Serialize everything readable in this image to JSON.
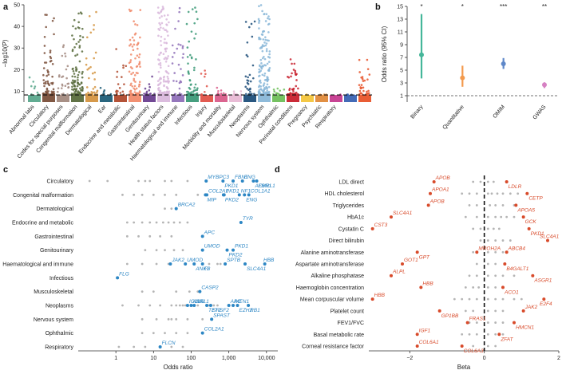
{
  "panel_labels": [
    "a",
    "b",
    "c",
    "d"
  ],
  "colors": {
    "grey": "#b5b5b5",
    "blue": "#2c86c4",
    "red": "#d84a2a",
    "binary": "#45b69a",
    "quantitative": "#f39a4d",
    "omim": "#5f88c9",
    "gwas": "#d681c3"
  },
  "chart_data": [
    {
      "id": "a",
      "type": "scatter",
      "title": "",
      "ylabel": "−log10(P)",
      "ylim": [
        5,
        50
      ],
      "yticks": [
        10,
        20,
        30,
        40,
        50
      ],
      "threshold": 8.3,
      "categories": [
        {
          "name": "Abnormal labs",
          "color": "#5aa88c",
          "n": 8,
          "max": 32
        },
        {
          "name": "Circulatory",
          "color": "#7a4f3a",
          "n": 70,
          "max": 50
        },
        {
          "name": "Codes for special purposes",
          "color": "#a38a80",
          "n": 25,
          "max": 33
        },
        {
          "name": "Congenital malformation",
          "color": "#586b3c",
          "n": 110,
          "max": 50
        },
        {
          "name": "Dermatological",
          "color": "#d49440",
          "n": 35,
          "max": 50
        },
        {
          "name": "Ear",
          "color": "#1f5e78",
          "n": 6,
          "max": 12
        },
        {
          "name": "Endocrine and metabolic",
          "color": "#b04a2d",
          "n": 18,
          "max": 30
        },
        {
          "name": "Gastrointestinal",
          "color": "#f08a6a",
          "n": 85,
          "max": 50
        },
        {
          "name": "Genitourinary",
          "color": "#6a3f8f",
          "n": 14,
          "max": 18
        },
        {
          "name": "Health status factors",
          "color": "#d9b8dc",
          "n": 140,
          "max": 50
        },
        {
          "name": "Haematological and immune",
          "color": "#8f70b8",
          "n": 30,
          "max": 50
        },
        {
          "name": "Infectious",
          "color": "#3c9a78",
          "n": 60,
          "max": 50
        },
        {
          "name": "Injury",
          "color": "#e05248",
          "n": 8,
          "max": 20
        },
        {
          "name": "Morbidity and mortality",
          "color": "#d95d8a",
          "n": 10,
          "max": 14
        },
        {
          "name": "Musculoskeletal",
          "color": "#e8b8d4",
          "n": 8,
          "max": 11
        },
        {
          "name": "Neoplasms",
          "color": "#1f4f7a",
          "n": 30,
          "max": 43
        },
        {
          "name": "Nervous system",
          "color": "#89b7d8",
          "n": 160,
          "max": 50
        },
        {
          "name": "Ophthalmic",
          "color": "#6fbf5a",
          "n": 10,
          "max": 15
        },
        {
          "name": "Perinatal conditions",
          "color": "#c8202d",
          "n": 45,
          "max": 25
        },
        {
          "name": "Pregnancy",
          "color": "#f3c53c",
          "n": 3,
          "max": 7
        },
        {
          "name": "Psychiatric",
          "color": "#e08a3a",
          "n": 4,
          "max": 7
        },
        {
          "name": "Respiratory",
          "color": "#c53b8f",
          "n": 3,
          "max": 6
        },
        {
          "name": "",
          "color": "#3a63b3",
          "n": 5,
          "max": 8
        },
        {
          "name": "",
          "color": "#e8542a",
          "n": 30,
          "max": 25
        }
      ]
    },
    {
      "id": "b",
      "type": "scatter",
      "title": "",
      "ylabel": "Odds ratio (95% CI)",
      "ylim": [
        0,
        15
      ],
      "yticks": [
        1,
        3,
        5,
        7,
        9,
        11,
        13,
        15
      ],
      "reference_line": 1,
      "categories": [
        "Binary",
        "Quantitative",
        "OMIM",
        "GWAS"
      ],
      "series": [
        {
          "category": "Binary",
          "or": 7.4,
          "ci": [
            3.7,
            13.8
          ],
          "significance": "*",
          "color": "#45b69a"
        },
        {
          "category": "Quantitative",
          "or": 3.8,
          "ci": [
            2.4,
            5.7
          ],
          "significance": "*",
          "color": "#f39a4d"
        },
        {
          "category": "OMIM",
          "or": 6.0,
          "ci": [
            5.2,
            6.9
          ],
          "significance": "***",
          "color": "#5f88c9"
        },
        {
          "category": "GWAS",
          "or": 2.7,
          "ci": [
            2.2,
            3.1
          ],
          "significance": "**",
          "color": "#d681c3"
        }
      ]
    },
    {
      "id": "c",
      "type": "scatter",
      "title": "",
      "xlabel": "Odds ratio",
      "xscale": "log",
      "xlim": [
        0.1,
        20000
      ],
      "xticks": [
        1,
        10,
        100,
        1000,
        10000
      ],
      "xtick_labels": [
        "1",
        "10",
        "100",
        "1,000",
        "10,000"
      ],
      "categories": [
        "Circulatory",
        "Congenital malformation",
        "Dermatological",
        "Endocrine and metabolic",
        "Gastrointestinal",
        "Genitourinary",
        "Haematological and immune",
        "Infectious",
        "Musculoskeletal",
        "Neoplasms",
        "Nervous system",
        "Ophthalmic",
        "Respiratory"
      ],
      "background": [
        {
          "category": "Circulatory",
          "x": [
            0.2,
            0.6,
            4,
            6,
            8,
            20,
            30,
            80
          ]
        },
        {
          "category": "Congenital malformation",
          "x": [
            1.5,
            3,
            5,
            10,
            20,
            40,
            150
          ]
        },
        {
          "category": "Dermatological",
          "x": [
            20,
            30
          ]
        },
        {
          "category": "Endocrine and metabolic",
          "x": [
            2,
            3,
            5,
            8,
            12,
            18,
            25,
            35,
            50,
            80
          ]
        },
        {
          "category": "Gastrointestinal",
          "x": [
            2,
            4,
            8,
            15,
            30
          ]
        },
        {
          "category": "Genitourinary",
          "x": [
            6,
            12,
            20,
            35,
            60
          ]
        },
        {
          "category": "Haematological and immune",
          "x": [
            2,
            5,
            12,
            25,
            300,
            500,
            600
          ]
        },
        {
          "category": "Infectious",
          "x": []
        },
        {
          "category": "Musculoskeletal",
          "x": [
            5,
            10,
            40,
            90,
            150
          ]
        },
        {
          "category": "Neoplasms",
          "x": [
            1.5,
            4,
            8,
            15,
            30,
            40,
            50,
            60,
            70,
            150,
            300,
            400,
            500
          ]
        },
        {
          "category": "Nervous system",
          "x": [
            5,
            12,
            25,
            30,
            40,
            80,
            200
          ]
        },
        {
          "category": "Ophthalmic",
          "x": [
            5,
            10,
            20,
            40,
            80
          ]
        },
        {
          "category": "Respiratory",
          "x": [
            1.2,
            3,
            6,
            15,
            30,
            60
          ]
        }
      ],
      "highlighted": [
        {
          "category": "Circulatory",
          "gene": "MYBPC3",
          "x": 250
        },
        {
          "category": "Circulatory",
          "gene": "PKD1",
          "x": 700
        },
        {
          "category": "Circulatory",
          "gene": "FBN1",
          "x": 1300
        },
        {
          "category": "Circulatory",
          "gene": "ACVRL1",
          "x": 4500
        },
        {
          "category": "Circulatory",
          "gene": "ENG",
          "x": 2300
        },
        {
          "category": "Circulatory",
          "gene": "FBN1",
          "x": 5500
        },
        {
          "category": "Congenital malformation",
          "gene": "COL2A1",
          "x": 260
        },
        {
          "category": "Congenital malformation",
          "gene": "MIP",
          "x": 240
        },
        {
          "category": "Congenital malformation",
          "gene": "PKD1",
          "x": 750
        },
        {
          "category": "Congenital malformation",
          "gene": "PKD2",
          "x": 720
        },
        {
          "category": "Congenital malformation",
          "gene": "NF1",
          "x": 1900
        },
        {
          "category": "Congenital malformation",
          "gene": "ENG",
          "x": 2600
        },
        {
          "category": "Congenital malformation",
          "gene": "COL1A1",
          "x": 3400
        },
        {
          "category": "Dermatological",
          "gene": "BRCA2",
          "x": 40
        },
        {
          "category": "Endocrine and metabolic",
          "gene": "TYR",
          "x": 2100
        },
        {
          "category": "Gastrointestinal",
          "gene": "APC",
          "x": 200
        },
        {
          "category": "Genitourinary",
          "gene": "UMOD",
          "x": 200
        },
        {
          "category": "Genitourinary",
          "gene": "PKD2",
          "x": 900
        },
        {
          "category": "Genitourinary",
          "gene": "PKD1",
          "x": 1300
        },
        {
          "category": "Haematological and immune",
          "gene": "JAK2",
          "x": 28
        },
        {
          "category": "Haematological and immune",
          "gene": "ANK1",
          "x": 120
        },
        {
          "category": "Haematological and immune",
          "gene": "UMOD",
          "x": 70
        },
        {
          "category": "Haematological and immune",
          "gene": "F8",
          "x": 200
        },
        {
          "category": "Haematological and immune",
          "gene": "SPTB",
          "x": 800
        },
        {
          "category": "Haematological and immune",
          "gene": "SLC4A1",
          "x": 2700
        },
        {
          "category": "Haematological and immune",
          "gene": "HBB",
          "x": 9000
        },
        {
          "category": "Infectious",
          "gene": "FLG",
          "x": 1.1
        },
        {
          "category": "Musculoskeletal",
          "gene": "CASP2",
          "x": 170
        },
        {
          "category": "Neoplasms",
          "gene": "NF1",
          "x": 120
        },
        {
          "category": "Neoplasms",
          "gene": "TET2",
          "x": 260
        },
        {
          "category": "Neoplasms",
          "gene": "MEN1",
          "x": 1300
        },
        {
          "category": "Neoplasms",
          "gene": "RB1",
          "x": 3300
        },
        {
          "category": "Neoplasms",
          "gene": "ASXL1",
          "x": 100
        },
        {
          "category": "Neoplasms",
          "gene": "SRSF2",
          "x": 330
        },
        {
          "category": "Neoplasms",
          "gene": "APC",
          "x": 1000
        },
        {
          "category": "Neoplasms",
          "gene": "EZH2",
          "x": 1700
        },
        {
          "category": "Neoplasms",
          "gene": "IGLL5",
          "x": 80
        },
        {
          "category": "Nervous system",
          "gene": "SPAST",
          "x": 350
        },
        {
          "category": "Ophthalmic",
          "gene": "COL2A1",
          "x": 200
        },
        {
          "category": "Respiratory",
          "gene": "FLCN",
          "x": 15
        }
      ]
    },
    {
      "id": "d",
      "type": "scatter",
      "title": "",
      "xlabel": "Beta",
      "xlim": [
        -3.1,
        2.0
      ],
      "xticks": [
        -2,
        0,
        2
      ],
      "xtick_labels": [
        "−2",
        "0",
        "2"
      ],
      "categories": [
        "LDL direct",
        "HDL cholesterol",
        "Triglycerides",
        "HbA1c",
        "Cystatin C",
        "Direct bilirubin",
        "Alanine aminotransferase",
        "Aspartate aminotransferase",
        "Alkaline phosphatase",
        "Haemoglobin concentration",
        "Mean corpuscular volume",
        "Platelet count",
        "FEV1/FVC",
        "Basal metabolic rate",
        "Corneal resistance factor"
      ],
      "background": [
        {
          "category": "LDL direct",
          "x": [
            -0.3,
            -0.1,
            0.1,
            0.25
          ]
        },
        {
          "category": "HDL cholesterol",
          "x": [
            -0.6,
            -0.4,
            -0.2,
            0.1,
            0.2,
            0.35,
            0.5,
            0.7,
            0.9
          ]
        },
        {
          "category": "Triglycerides",
          "x": [
            -0.4,
            -0.2,
            0.15,
            0.3,
            0.5,
            0.8
          ]
        },
        {
          "category": "HbA1c",
          "x": [
            -0.5,
            -0.2,
            0.1,
            0.3,
            0.45,
            0.6,
            0.8
          ]
        },
        {
          "category": "Cystatin C",
          "x": [
            -0.3,
            -0.1,
            0.1,
            0.25,
            0.4
          ]
        },
        {
          "category": "Direct bilirubin",
          "x": [
            -0.1,
            0.1,
            0.3,
            0.5,
            0.7
          ]
        },
        {
          "category": "Alanine aminotransferase",
          "x": [
            -0.3,
            0.1,
            0.3,
            0.5
          ]
        },
        {
          "category": "Aspartate aminotransferase",
          "x": [
            -0.2,
            0.1,
            0.3
          ]
        },
        {
          "category": "Alkaline phosphatase",
          "x": [
            -0.4,
            -0.2,
            0.1,
            0.3,
            0.5,
            0.8
          ]
        },
        {
          "category": "Haemoglobin concentration",
          "x": [
            -0.5,
            -0.3,
            -0.15,
            0.1,
            0.3
          ]
        },
        {
          "category": "Mean corpuscular volume",
          "x": [
            -0.8,
            -0.6,
            -0.4,
            -0.2,
            0.1,
            0.3,
            0.5,
            0.8,
            1.0
          ]
        },
        {
          "category": "Platelet count",
          "x": [
            -0.5,
            -0.3,
            0.1,
            0.3,
            0.5
          ]
        },
        {
          "category": "FEV1/FVC",
          "x": [
            -0.4,
            -0.2,
            0.1,
            0.3,
            0.5
          ]
        },
        {
          "category": "Basal metabolic rate",
          "x": [
            -0.6,
            -0.4,
            -0.2,
            0.1,
            0.3,
            0.5
          ]
        },
        {
          "category": "Corneal resistance factor",
          "x": [
            -0.3,
            0.1,
            0.3
          ]
        }
      ],
      "highlighted": [
        {
          "category": "LDL direct",
          "gene": "APOB",
          "x": -1.35
        },
        {
          "category": "LDL direct",
          "gene": "LDLR",
          "x": 0.6
        },
        {
          "category": "HDL cholesterol",
          "gene": "APOA1",
          "x": -1.45
        },
        {
          "category": "HDL cholesterol",
          "gene": "CETP",
          "x": 1.15
        },
        {
          "category": "Triglycerides",
          "gene": "APOB",
          "x": -1.5
        },
        {
          "category": "Triglycerides",
          "gene": "APOA5",
          "x": 0.85
        },
        {
          "category": "HbA1c",
          "gene": "SLC4A1",
          "x": -2.5
        },
        {
          "category": "HbA1c",
          "gene": "GCK",
          "x": 1.05
        },
        {
          "category": "Cystatin C",
          "gene": "CST3",
          "x": -3.0
        },
        {
          "category": "Cystatin C",
          "gene": "PKD1",
          "x": 1.2
        },
        {
          "category": "Direct bilirubin",
          "gene": "SLC4A1",
          "x": 1.7
        },
        {
          "category": "Alanine aminotransferase",
          "gene": "MROH2A",
          "x": -0.2
        },
        {
          "category": "Alanine aminotransferase",
          "gene": "GPT",
          "x": -1.8
        },
        {
          "category": "Alanine aminotransferase",
          "gene": "ABCB4",
          "x": 0.6
        },
        {
          "category": "Aspartate aminotransferase",
          "gene": "GOT1",
          "x": -2.2
        },
        {
          "category": "Aspartate aminotransferase",
          "gene": "B4GALT1",
          "x": 0.55
        },
        {
          "category": "Alkaline phosphatase",
          "gene": "ALPL",
          "x": -2.5
        },
        {
          "category": "Alkaline phosphatase",
          "gene": "ASGR1",
          "x": 1.3
        },
        {
          "category": "Haemoglobin concentration",
          "gene": "HBB",
          "x": -1.7
        },
        {
          "category": "Haemoglobin concentration",
          "gene": "ACO1",
          "x": 0.5
        },
        {
          "category": "Mean corpuscular volume",
          "gene": "HBB",
          "x": -3.0
        },
        {
          "category": "Mean corpuscular volume",
          "gene": "E2F4",
          "x": 1.6
        },
        {
          "category": "Platelet count",
          "gene": "JAK2",
          "x": 1.05
        },
        {
          "category": "Platelet count",
          "gene": "GP1BB",
          "x": -1.2
        },
        {
          "category": "FEV1/FVC",
          "gene": "FRAS1",
          "x": -0.45
        },
        {
          "category": "FEV1/FVC",
          "gene": "HMCN1",
          "x": 0.8
        },
        {
          "category": "Basal metabolic rate",
          "gene": "IGF1",
          "x": -1.8
        },
        {
          "category": "Basal metabolic rate",
          "gene": "ZFAT",
          "x": 0.4
        },
        {
          "category": "Corneal resistance factor",
          "gene": "COL6A1",
          "x": -1.8
        },
        {
          "category": "Corneal resistance factor",
          "gene": "COL6A3",
          "x": -0.6
        }
      ]
    }
  ]
}
